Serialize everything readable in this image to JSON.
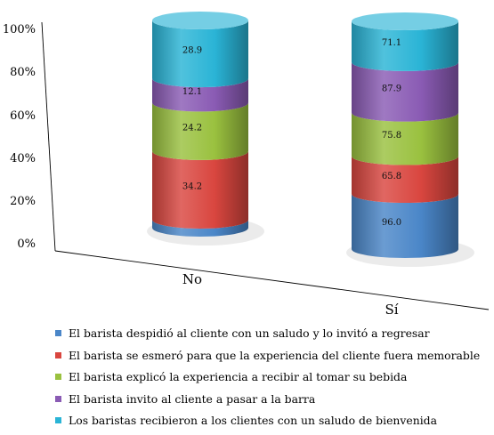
{
  "chart_data": {
    "type": "bar",
    "subtype": "stacked-100-percent-cylinder-3d",
    "categories": [
      "No",
      "Sí"
    ],
    "series": [
      {
        "name": "El barista despidió al cliente con un saludo y lo invitó a regresar",
        "values": [
          4.0,
          96.0
        ],
        "color": "#4a86c8"
      },
      {
        "name": "El barista se esmeró para que la experiencia del cliente fuera memorable",
        "values": [
          34.2,
          65.8
        ],
        "color": "#d9463f"
      },
      {
        "name": "El barista explicó la experiencia a recibir al tomar su bebida",
        "values": [
          24.2,
          75.8
        ],
        "color": "#9ac13f"
      },
      {
        "name": "El barista invito al cliente a pasar a la barra",
        "values": [
          12.1,
          87.9
        ],
        "color": "#8a5bb4"
      },
      {
        "name": "Los baristas recibieron a los clientes con un saludo de bienvenida",
        "values": [
          28.9,
          71.1
        ],
        "color": "#2ab4d6"
      }
    ],
    "yticks": [
      "0%",
      "20%",
      "40%",
      "60%",
      "80%",
      "100%"
    ],
    "ylim": [
      0,
      100
    ],
    "grid": false,
    "legend_position": "bottom"
  }
}
